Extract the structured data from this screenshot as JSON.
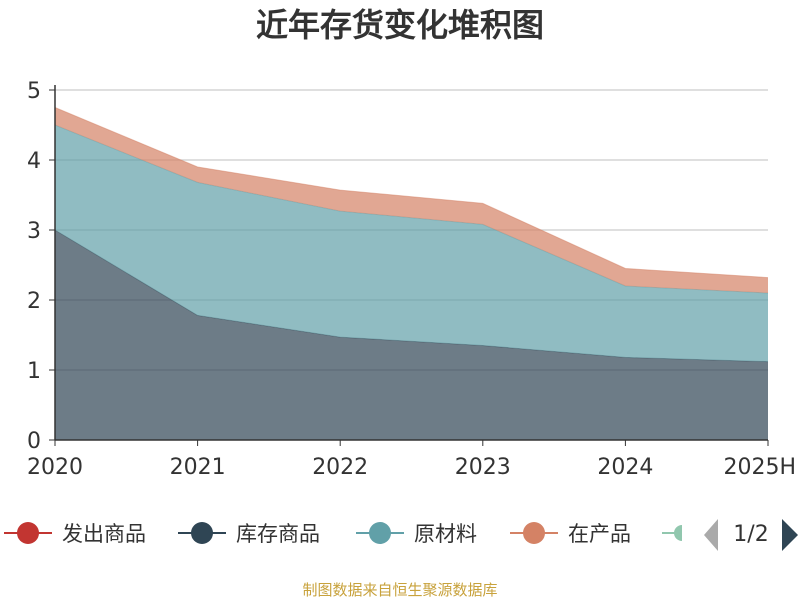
{
  "chart_data": {
    "type": "area",
    "stacked": true,
    "title": "近年存货变化堆积图",
    "xlabel": "",
    "ylabel": "",
    "categories": [
      "2020",
      "2021",
      "2022",
      "2023",
      "2024",
      "2025H"
    ],
    "ylim": [
      0,
      5
    ],
    "yticks": [
      0,
      1,
      2,
      3,
      4,
      5
    ],
    "grid": true,
    "series": [
      {
        "name": "发出商品",
        "color": "#c23531",
        "values": [
          0,
          0,
          0,
          0,
          0,
          0
        ]
      },
      {
        "name": "库存商品",
        "color": "#2f4554",
        "values": [
          3.0,
          1.78,
          1.47,
          1.35,
          1.18,
          1.12
        ]
      },
      {
        "name": "原材料",
        "color": "#61a0a8",
        "values": [
          1.5,
          1.9,
          1.8,
          1.73,
          1.02,
          0.98
        ]
      },
      {
        "name": "在产品",
        "color": "#d48265",
        "values": [
          0.25,
          0.22,
          0.3,
          0.3,
          0.25,
          0.22
        ]
      }
    ],
    "legend": {
      "position": "bottom",
      "truncated_item_color": "#91c7ae",
      "page": "1/2"
    }
  },
  "source_text": "制图数据来自恒生聚源数据库",
  "source_color": "#c8a23c"
}
